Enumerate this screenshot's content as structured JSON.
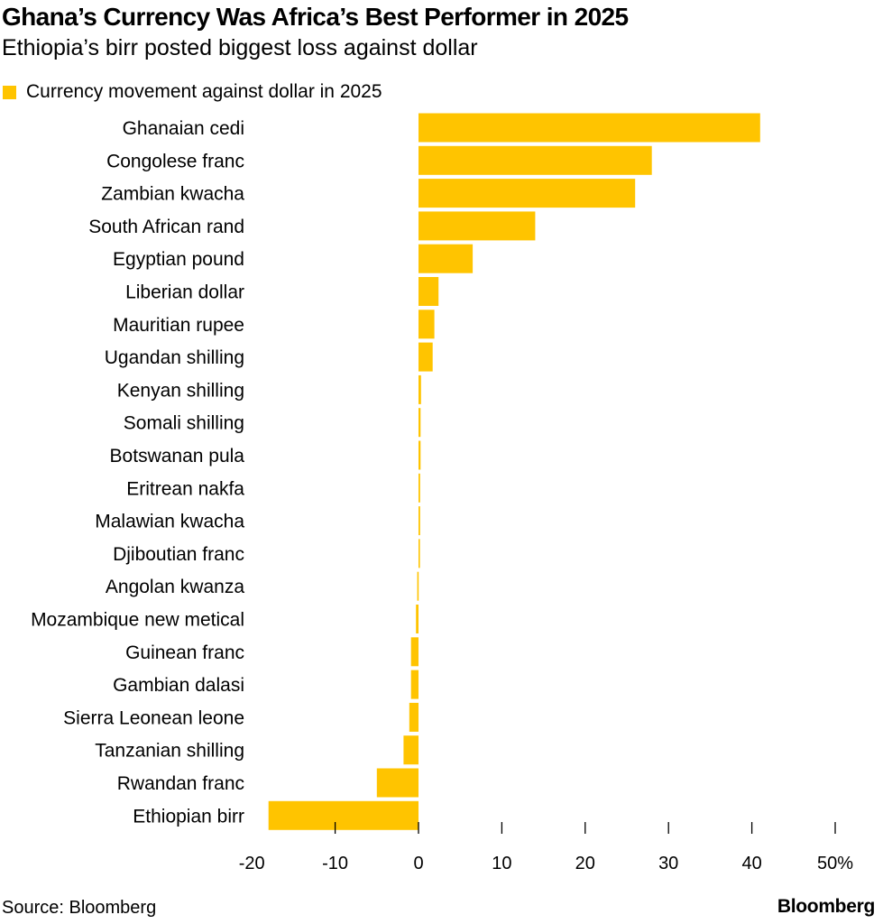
{
  "header": {
    "title": "Ghana’s Currency Was Africa’s Best Performer in 2025",
    "subtitle": "Ethiopia’s birr posted biggest loss against dollar"
  },
  "footer": {
    "source": "Source: Bloomberg",
    "brand": "Bloomberg"
  },
  "colors": {
    "bar": "#FFC400",
    "axis": "#000000",
    "text": "#000000"
  },
  "chart_data": {
    "type": "bar",
    "orientation": "horizontal",
    "title": "Ghana’s Currency Was Africa’s Best Performer in 2025",
    "subtitle": "Ethiopia’s birr posted biggest loss against dollar",
    "legend": {
      "position": "top-left",
      "entries": [
        "Currency movement against dollar in 2025"
      ]
    },
    "categories": [
      "Ghanaian cedi",
      "Congolese franc",
      "Zambian kwacha",
      "South African rand",
      "Egyptian pound",
      "Liberian dollar",
      "Mauritian rupee",
      "Ugandan shilling",
      "Kenyan shilling",
      "Somali shilling",
      "Botswanan pula",
      "Eritrean nakfa",
      "Malawian kwacha",
      "Djiboutian franc",
      "Angolan kwanza",
      "Mozambique new metical",
      "Guinean franc",
      "Gambian dalasi",
      "Sierra Leonean leone",
      "Tanzanian shilling",
      "Rwandan franc",
      "Ethiopian birr"
    ],
    "series": [
      {
        "name": "Currency movement against dollar in 2025",
        "values": [
          41,
          28,
          26,
          14,
          6.5,
          2.4,
          1.9,
          1.7,
          0.3,
          0.25,
          0.25,
          0.2,
          0.2,
          0.15,
          -0.15,
          -0.3,
          -0.9,
          -0.9,
          -1.1,
          -1.8,
          -5,
          -18
        ]
      }
    ],
    "xlim": [
      -20,
      50
    ],
    "xticks": [
      -20,
      -10,
      0,
      10,
      20,
      30,
      40,
      50
    ],
    "xtick_labels": [
      "-20",
      "-10",
      "0",
      "10",
      "20",
      "30",
      "40",
      "50%"
    ],
    "xlabel": "",
    "ylabel": "",
    "grid": false
  }
}
